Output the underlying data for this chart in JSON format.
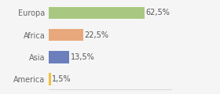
{
  "categories": [
    "America",
    "Asia",
    "Africa",
    "Europa"
  ],
  "values": [
    1.5,
    13.5,
    22.5,
    62.5
  ],
  "labels": [
    "1,5%",
    "13,5%",
    "22,5%",
    "62,5%"
  ],
  "bar_colors": [
    "#f0c040",
    "#e8a87c",
    "#e8a87c",
    "#a8c882"
  ],
  "bar_colors_exact": [
    "#f0c040",
    "#6b7fbd",
    "#e8a87c",
    "#a8c882"
  ],
  "background_color": "#f5f5f5",
  "xlim": [
    0,
    80
  ],
  "label_fontsize": 7,
  "tick_fontsize": 7,
  "bar_height": 0.55
}
